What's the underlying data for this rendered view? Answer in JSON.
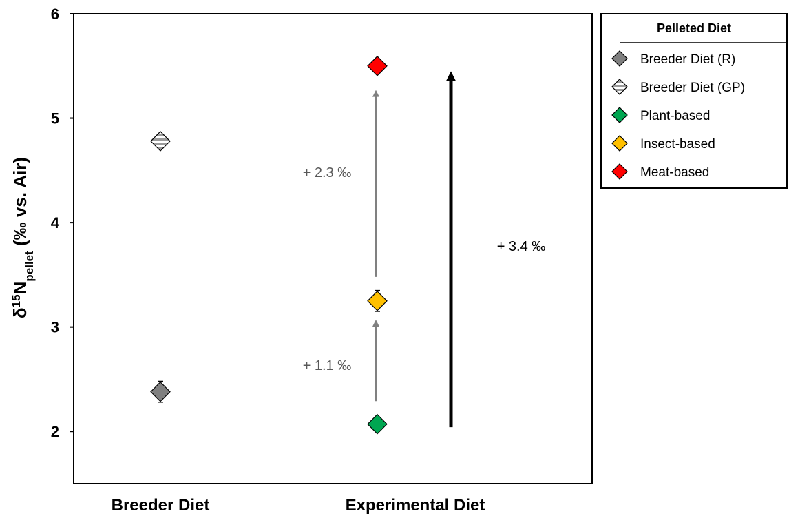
{
  "chart_data": {
    "type": "scatter",
    "title": "",
    "ylabel_main": "δ",
    "ylabel_sup": "15",
    "ylabel_n": "N",
    "ylabel_sub": "pellet",
    "ylabel_rest": " (‰ vs. Air)",
    "ylim": [
      1.5,
      6
    ],
    "yticks": [
      "2",
      "3",
      "4",
      "5",
      "6"
    ],
    "categories": [
      "Breeder Diet",
      "Experimental Diet"
    ],
    "series": [
      {
        "name": "Breeder Diet (R)",
        "category": "Breeder Diet",
        "y": 2.38,
        "err": 0.1,
        "color": "#808080",
        "hatched": false
      },
      {
        "name": "Breeder Diet (GP)",
        "category": "Breeder Diet",
        "y": 4.78,
        "err": 0.04,
        "color": "#bfbfbf",
        "hatched": true
      },
      {
        "name": "Plant-based",
        "category": "Experimental Diet",
        "y": 2.07,
        "err": 0.04,
        "color": "#00a651",
        "hatched": false
      },
      {
        "name": "Insect-based",
        "category": "Experimental Diet",
        "y": 3.25,
        "err": 0.1,
        "color": "#ffc000",
        "hatched": false
      },
      {
        "name": "Meat-based",
        "category": "Experimental Diet",
        "y": 5.5,
        "err": 0.04,
        "color": "#ff0000",
        "hatched": false
      }
    ],
    "annotations": [
      {
        "text": "+ 1.1 ‰",
        "from": 2.07,
        "to": 3.25,
        "color": "#808080"
      },
      {
        "text": "+ 2.3 ‰",
        "from": 3.25,
        "to": 5.5,
        "color": "#808080"
      },
      {
        "text": "+ 3.4 ‰",
        "from": 2.07,
        "to": 5.5,
        "color": "#000000"
      }
    ],
    "legend": {
      "title": "Pelleted Diet",
      "position": "top-right-outside"
    },
    "grid": false
  }
}
